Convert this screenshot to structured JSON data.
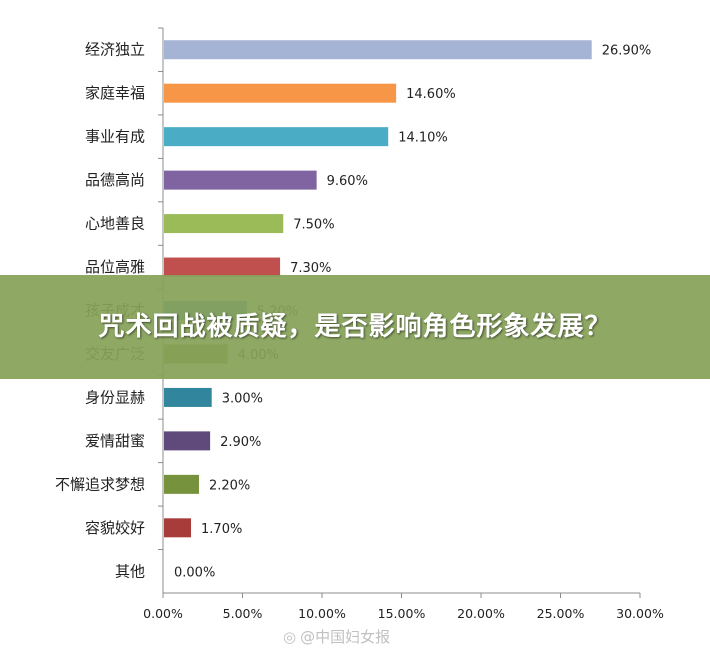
{
  "overlay": {
    "title": "咒术回战被质疑，是否影响角色形象发展？"
  },
  "watermark": {
    "text": "@中国妇女报",
    "icon": "weibo-icon"
  },
  "chart_data": {
    "type": "bar",
    "orientation": "horizontal",
    "categories": [
      "经济独立",
      "家庭幸福",
      "事业有成",
      "品德高尚",
      "心地善良",
      "品位高雅",
      "孩子成才",
      "交友广泛",
      "身份显赫",
      "爱情甜蜜",
      "不懈追求梦想",
      "容貌姣好",
      "其他"
    ],
    "values": [
      26.9,
      14.6,
      14.1,
      9.6,
      7.5,
      7.3,
      5.2,
      4.0,
      3.0,
      2.9,
      2.2,
      1.7,
      0.0
    ],
    "value_labels": [
      "26.90%",
      "14.60%",
      "14.10%",
      "9.60%",
      "7.50%",
      "7.30%",
      "5.20%",
      "4.00%",
      "3.00%",
      "2.90%",
      "2.20%",
      "1.70%",
      "0.00%"
    ],
    "colors": [
      "#a5b3d4",
      "#f79646",
      "#4bacc6",
      "#8064a2",
      "#9bbb59",
      "#c0504d",
      "#4f81bd",
      "#7a7a2c",
      "#31859c",
      "#604a7b",
      "#76923c",
      "#a83c3a",
      "#4f81bd"
    ],
    "xlim": [
      0,
      30
    ],
    "xticks": [
      "0.00%",
      "5.00%",
      "10.00%",
      "15.00%",
      "20.00%",
      "25.00%",
      "30.00%"
    ],
    "grid": false,
    "title": "",
    "xlabel": "",
    "ylabel": ""
  }
}
